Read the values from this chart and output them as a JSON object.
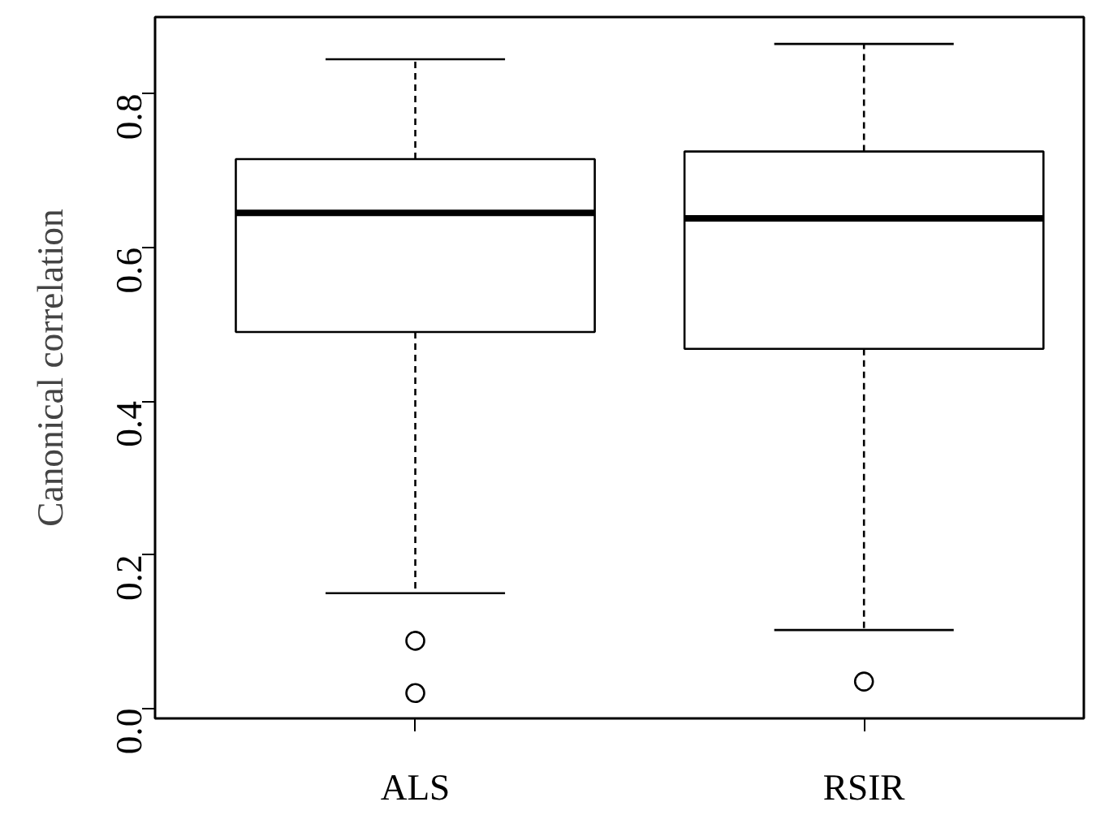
{
  "chart_data": {
    "type": "box",
    "ylabel": "Canonical correlation",
    "categories": [
      "ALS",
      "RSIR"
    ],
    "boxes": [
      {
        "low": 0.15,
        "q1": 0.49,
        "median": 0.645,
        "q3": 0.715,
        "high": 0.845,
        "outliers": [
          0.088,
          0.02
        ]
      },
      {
        "low": 0.102,
        "q1": 0.468,
        "median": 0.638,
        "q3": 0.725,
        "high": 0.865,
        "outliers": [
          0.035
        ]
      }
    ],
    "ylim": [
      -0.013,
      0.9
    ],
    "yticks": [
      {
        "value": 0,
        "label": "0.0"
      },
      0.2,
      0.4,
      0.6,
      0.8
    ],
    "grid": false,
    "color": "#000000"
  }
}
